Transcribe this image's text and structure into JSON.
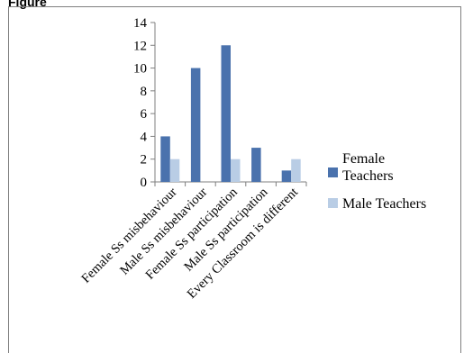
{
  "figure": {
    "label": "Figure"
  },
  "colors": {
    "female": "#4a72ad",
    "male": "#b9cde5",
    "axis": "#7f7f7f"
  },
  "chart_data": {
    "type": "bar",
    "title": "",
    "xlabel": "",
    "ylabel": "",
    "ylim": [
      0,
      14
    ],
    "yticks": [
      0,
      2,
      4,
      6,
      8,
      10,
      12,
      14
    ],
    "categories": [
      "Female Ss misbehaviour",
      "Male Ss misbehaviour",
      "Female Ss participation",
      "Male Ss participation",
      "Every Classroom is different"
    ],
    "series": [
      {
        "name": "Female Teachers",
        "legend_lines": [
          "Female",
          "Teachers"
        ],
        "values": [
          4,
          10,
          12,
          3,
          1
        ]
      },
      {
        "name": "Male Teachers",
        "legend_lines": [
          "Male Teachers"
        ],
        "values": [
          2,
          0,
          2,
          0,
          2
        ]
      }
    ],
    "legend": "right",
    "grid": false
  }
}
